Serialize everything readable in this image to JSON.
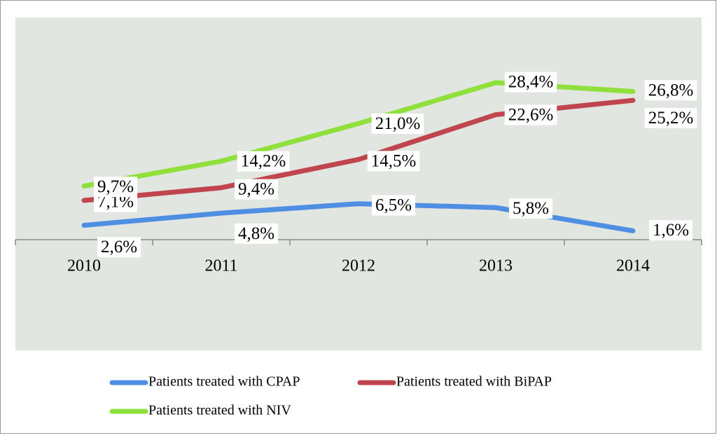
{
  "chart_data": {
    "type": "line",
    "categories": [
      "2010",
      "2011",
      "2012",
      "2013",
      "2014"
    ],
    "series": [
      {
        "name": "Patients treated with CPAP",
        "color": "#4f8fe3",
        "values": [
          2.6,
          4.8,
          6.5,
          5.8,
          1.6
        ],
        "value_labels": [
          "2,6%",
          "4,8%",
          "6,5%",
          "5,8%",
          "1,6%"
        ]
      },
      {
        "name": "Patients treated with BiPAP",
        "color": "#c0454e",
        "values": [
          7.1,
          9.4,
          14.5,
          22.6,
          25.2
        ],
        "value_labels": [
          "7,1%",
          "9,4%",
          "14,5%",
          "22,6%",
          "25,2%"
        ]
      },
      {
        "name": "Patients treated with NIV",
        "color": "#8fe03c",
        "values": [
          9.7,
          14.2,
          21.0,
          28.4,
          26.8
        ],
        "value_labels": [
          "9,7%",
          "14,2%",
          "21,0%",
          "28,4%",
          "26,8%"
        ]
      }
    ]
  }
}
